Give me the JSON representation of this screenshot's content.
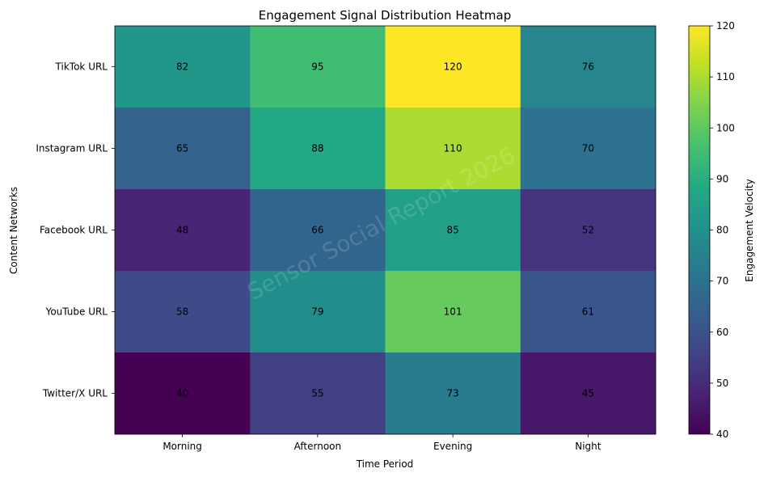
{
  "chart_data": {
    "type": "heatmap",
    "title": "Engagement Signal Distribution Heatmap",
    "xlabel": "Time Period",
    "ylabel": "Content Networks",
    "x_categories": [
      "Morning",
      "Afternoon",
      "Evening",
      "Night"
    ],
    "y_categories": [
      "TikTok URL",
      "Instagram URL",
      "Facebook URL",
      "YouTube URL",
      "Twitter/X URL"
    ],
    "values": [
      [
        82,
        95,
        120,
        76
      ],
      [
        65,
        88,
        110,
        70
      ],
      [
        48,
        66,
        85,
        52
      ],
      [
        58,
        79,
        101,
        61
      ],
      [
        40,
        55,
        73,
        45
      ]
    ],
    "colorbar": {
      "label": "Engagement Velocity",
      "min": 40,
      "max": 120,
      "ticks": [
        40,
        50,
        60,
        70,
        80,
        90,
        100,
        110,
        120
      ],
      "colormap": "viridis"
    },
    "watermark": "Sensor Social Report 2026"
  }
}
